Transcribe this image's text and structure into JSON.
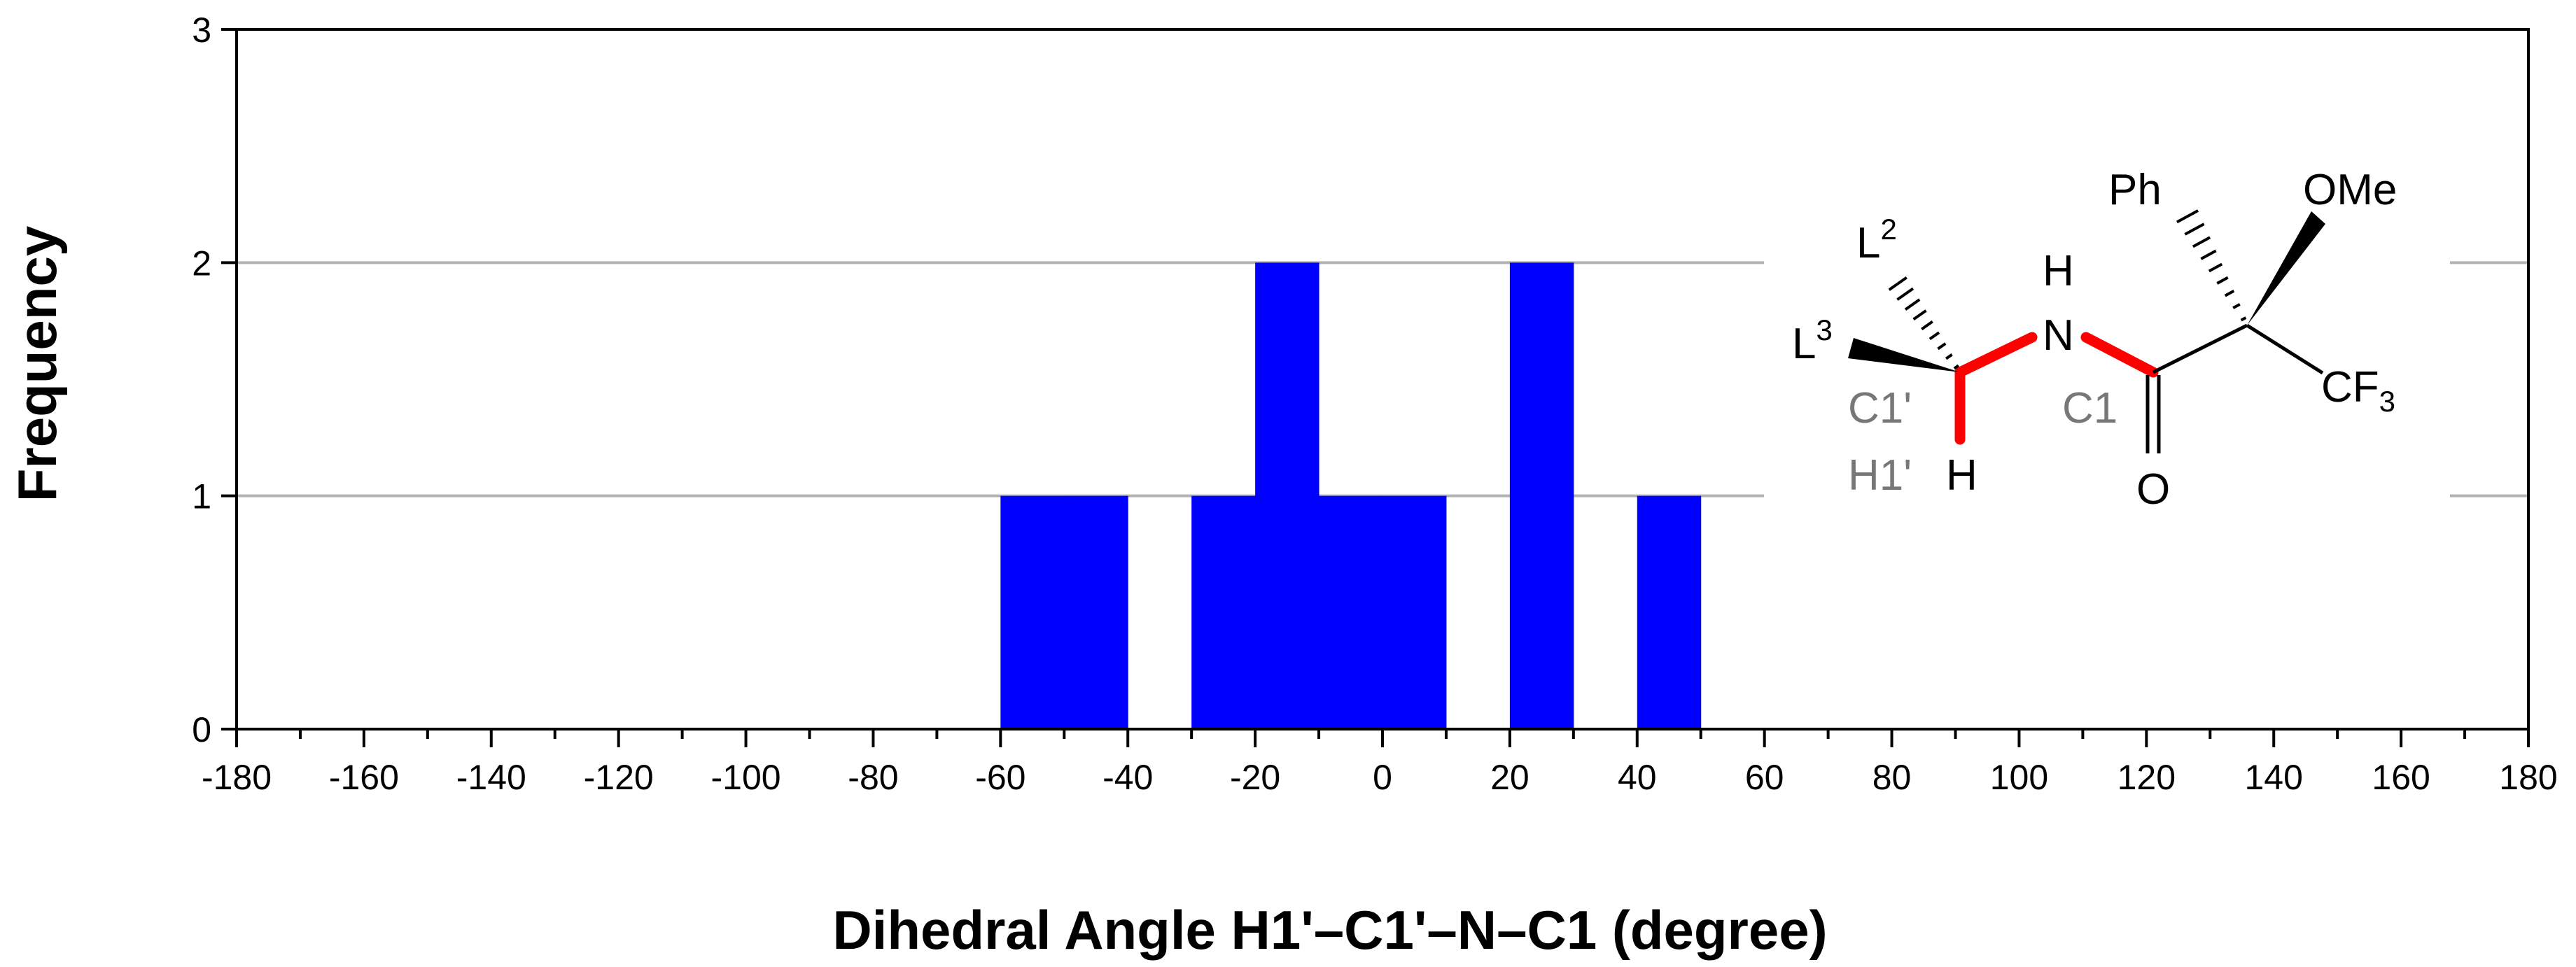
{
  "chart_data": {
    "type": "bar",
    "xlabel": "Dihedral Angle H1'–C1'–N–C1 (degree)",
    "ylabel": "Frequency",
    "xlim": [
      -180,
      180
    ],
    "ylim": [
      0,
      3
    ],
    "xticks": [
      -180,
      -160,
      -140,
      -120,
      -100,
      -80,
      -60,
      -40,
      -20,
      0,
      20,
      40,
      60,
      80,
      100,
      120,
      140,
      160,
      180
    ],
    "xtick_labels": [
      "-180",
      "-160",
      "-140",
      "-120",
      "-100",
      "-80",
      "-60",
      "-40",
      "-20",
      "0",
      "20",
      "40",
      "60",
      "80",
      "100",
      "120",
      "140",
      "160",
      "180"
    ],
    "yticks": [
      0,
      1,
      2,
      3
    ],
    "ytick_labels": [
      "0",
      "1",
      "2",
      "3"
    ],
    "grid": true,
    "bar_color": "#0000ff",
    "bars": [
      {
        "x0": -60,
        "x1": -50,
        "value": 1
      },
      {
        "x0": -50,
        "x1": -40,
        "value": 1
      },
      {
        "x0": -30,
        "x1": -20,
        "value": 1
      },
      {
        "x0": -20,
        "x1": -10,
        "value": 2
      },
      {
        "x0": -10,
        "x1": 0,
        "value": 1
      },
      {
        "x0": 0,
        "x1": 10,
        "value": 1
      },
      {
        "x0": 20,
        "x1": 30,
        "value": 2
      },
      {
        "x0": 40,
        "x1": 50,
        "value": 1
      }
    ]
  },
  "molecule": {
    "bond_highlight_color": "#ff0000",
    "labels": {
      "ph": "Ph",
      "ome": "OMe",
      "l2": "L",
      "l2_sup": "2",
      "l3": "L",
      "l3_sup": "3",
      "h_top": "H",
      "n": "N",
      "c1_prime": "C1'",
      "c1": "C1",
      "h1_prime": "H1'",
      "h": "H",
      "o": "O",
      "cf": "CF",
      "cf_sub": "3"
    }
  }
}
